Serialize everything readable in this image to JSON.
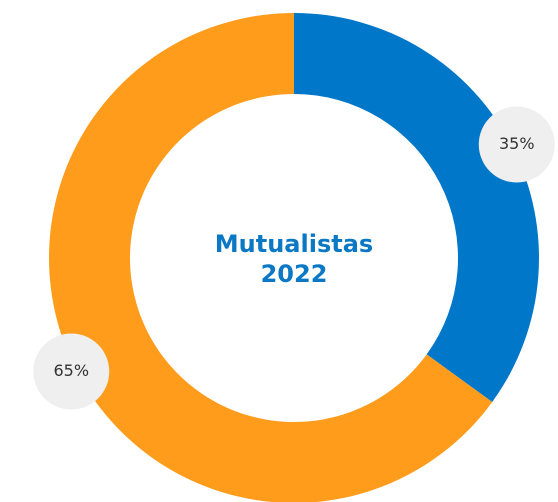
{
  "chart_data": {
    "type": "donut",
    "center_text": [
      "Mutualistas",
      "2022"
    ],
    "series": [
      {
        "name": null,
        "color": "#0077c8"
      },
      {
        "name": null,
        "color": "#ff9c1c"
      }
    ],
    "values": [
      35,
      65
    ],
    "value_labels": [
      "35%",
      "65%"
    ],
    "colors": [
      "#0077c8",
      "#ff9c1c"
    ]
  }
}
